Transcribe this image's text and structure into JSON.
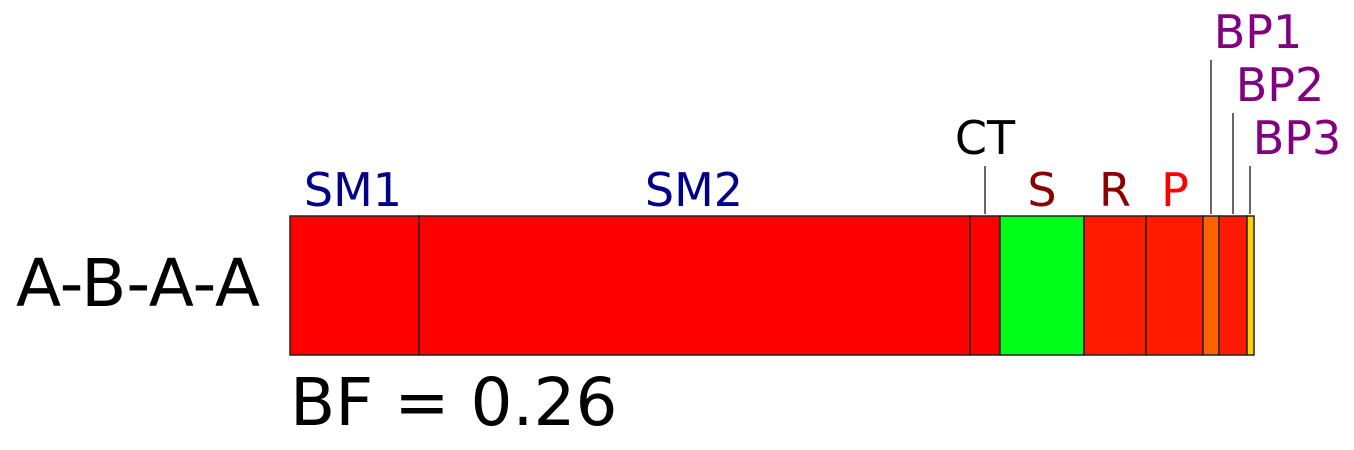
{
  "row_label": "A-B-A-A",
  "bf_text": "BF = 0.26",
  "segments": [
    {
      "id": "sm1",
      "color": "#ff0000"
    },
    {
      "id": "sm2",
      "color": "#ff0000"
    },
    {
      "id": "ct",
      "color": "#ff0000"
    },
    {
      "id": "s",
      "color": "#00ff1a"
    },
    {
      "id": "r",
      "color": "#ff1a00"
    },
    {
      "id": "p",
      "color": "#ff1a00"
    },
    {
      "id": "bp1",
      "color": "#ff6200"
    },
    {
      "id": "bp2",
      "color": "#ff1a00"
    },
    {
      "id": "bp3",
      "color": "#ffd000"
    }
  ],
  "labels": {
    "sm1": {
      "text": "SM1",
      "color": "#00008b"
    },
    "sm2": {
      "text": "SM2",
      "color": "#00008b"
    },
    "ct": {
      "text": "CT",
      "color": "#000000"
    },
    "s": {
      "text": "S",
      "color": "#8b0000"
    },
    "r": {
      "text": "R",
      "color": "#8b0000"
    },
    "p": {
      "text": "P",
      "color": "#ff0000"
    },
    "bp1": {
      "text": "BP1",
      "color": "#800080"
    },
    "bp2": {
      "text": "BP2",
      "color": "#800080"
    },
    "bp3": {
      "text": "BP3",
      "color": "#800080"
    }
  }
}
